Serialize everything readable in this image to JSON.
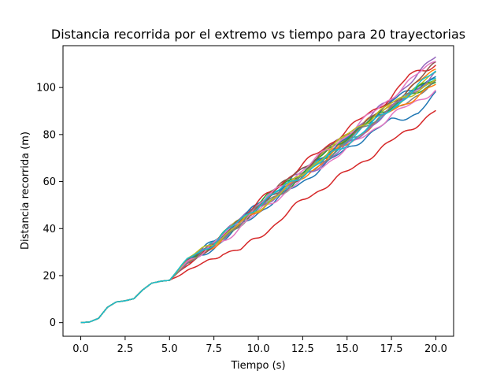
{
  "chart_data": {
    "type": "line",
    "title": "Distancia recorrida por el extremo vs tiempo para 20 trayectorias",
    "xlabel": "Tiempo (s)",
    "ylabel": "Distancia recorrida (m)",
    "xlim": [
      -1.0,
      21.0
    ],
    "ylim": [
      -5.8,
      117.8
    ],
    "xticks": [
      0.0,
      2.5,
      5.0,
      7.5,
      10.0,
      12.5,
      15.0,
      17.5,
      20.0
    ],
    "xtick_labels": [
      "0.0",
      "2.5",
      "5.0",
      "7.5",
      "10.0",
      "12.5",
      "15.0",
      "17.5",
      "20.0"
    ],
    "yticks": [
      0,
      20,
      40,
      60,
      80,
      100
    ],
    "ytick_labels": [
      "0",
      "20",
      "40",
      "60",
      "80",
      "100"
    ],
    "grid": false,
    "legend": "none",
    "common_start": {
      "x": [
        0,
        0.5,
        1.0,
        1.5,
        2.0,
        2.5,
        3.0,
        3.5,
        4.0,
        4.5,
        5.0
      ],
      "y": [
        0,
        0.3,
        1.8,
        6.5,
        8.8,
        9.3,
        10.2,
        14.0,
        16.8,
        17.6,
        18.0
      ]
    },
    "series": [
      {
        "color": "#1f77b4",
        "x": [
          5.0,
          6.0,
          7.5,
          10.0,
          12.5,
          15.0,
          17.5,
          19.0,
          20.0
        ],
        "y": [
          18.0,
          25.0,
          32.0,
          47.0,
          60.0,
          74.0,
          86.0,
          89.0,
          97.0
        ]
      },
      {
        "color": "#ff7f0e",
        "x": [
          5.0,
          6.0,
          7.5,
          10.0,
          12.5,
          15.0,
          17.5,
          20.0
        ],
        "y": [
          18.0,
          27.0,
          33.5,
          50.0,
          64.0,
          79.0,
          93.0,
          108.0
        ]
      },
      {
        "color": "#2ca02c",
        "x": [
          5.0,
          6.0,
          7.5,
          10.0,
          12.5,
          15.0,
          17.5,
          20.0
        ],
        "y": [
          18.0,
          26.0,
          33.0,
          48.0,
          62.0,
          78.0,
          91.0,
          103.0
        ]
      },
      {
        "color": "#d62728",
        "x": [
          5.0,
          6.0,
          7.0,
          8.0,
          9.0,
          10.0,
          12.5,
          15.0,
          17.5,
          20.0
        ],
        "y": [
          18.0,
          22.0,
          25.0,
          30.0,
          31.0,
          36.0,
          52.0,
          64.0,
          77.0,
          90.0
        ]
      },
      {
        "color": "#9467bd",
        "x": [
          5.0,
          6.0,
          7.5,
          10.0,
          12.5,
          15.0,
          17.5,
          20.0
        ],
        "y": [
          18.0,
          26.5,
          34.0,
          51.0,
          65.0,
          80.0,
          95.0,
          113.0
        ]
      },
      {
        "color": "#8c564b",
        "x": [
          5.0,
          6.0,
          7.5,
          10.0,
          12.5,
          15.0,
          17.5,
          20.0
        ],
        "y": [
          18.0,
          25.5,
          33.0,
          49.0,
          63.0,
          78.0,
          92.0,
          104.0
        ]
      },
      {
        "color": "#e377c2",
        "x": [
          5.0,
          6.0,
          7.5,
          10.0,
          12.5,
          15.0,
          17.5,
          20.0
        ],
        "y": [
          18.0,
          25.0,
          31.5,
          47.0,
          61.0,
          74.0,
          88.0,
          99.0
        ]
      },
      {
        "color": "#7f7f7f",
        "x": [
          5.0,
          6.0,
          7.5,
          10.0,
          12.5,
          15.0,
          17.5,
          20.0
        ],
        "y": [
          18.0,
          26.0,
          33.0,
          49.0,
          62.5,
          77.0,
          90.0,
          102.0
        ]
      },
      {
        "color": "#bcbd22",
        "x": [
          5.0,
          6.0,
          7.5,
          10.0,
          12.5,
          15.0,
          17.5,
          20.0
        ],
        "y": [
          18.0,
          26.5,
          34.0,
          50.0,
          64.0,
          80.0,
          92.0,
          106.0
        ]
      },
      {
        "color": "#17becf",
        "x": [
          5.0,
          6.0,
          7.5,
          10.0,
          12.5,
          15.0,
          17.5,
          20.0
        ],
        "y": [
          18.0,
          27.0,
          33.5,
          50.0,
          63.0,
          77.0,
          91.0,
          105.0
        ]
      },
      {
        "color": "#1f77b4",
        "x": [
          5.0,
          6.0,
          7.5,
          10.0,
          12.5,
          15.0,
          17.5,
          20.0
        ],
        "y": [
          18.0,
          26.0,
          34.5,
          50.0,
          65.0,
          78.0,
          94.0,
          105.0
        ]
      },
      {
        "color": "#ff7f0e",
        "x": [
          5.0,
          6.0,
          7.5,
          10.0,
          12.5,
          15.0,
          17.5,
          20.0
        ],
        "y": [
          18.0,
          25.0,
          33.0,
          48.0,
          62.0,
          76.0,
          90.0,
          101.0
        ]
      },
      {
        "color": "#2ca02c",
        "x": [
          5.0,
          6.0,
          7.5,
          10.0,
          12.5,
          15.0,
          17.5,
          20.0
        ],
        "y": [
          18.0,
          26.5,
          33.5,
          51.0,
          64.5,
          79.0,
          92.0,
          104.0
        ]
      },
      {
        "color": "#d62728",
        "x": [
          5.0,
          6.0,
          7.5,
          10.0,
          12.5,
          15.0,
          17.5,
          18.5,
          20.0
        ],
        "y": [
          18.0,
          25.0,
          33.0,
          51.0,
          67.0,
          82.0,
          96.0,
          105.0,
          110.0
        ]
      },
      {
        "color": "#9467bd",
        "x": [
          5.0,
          6.0,
          7.5,
          10.0,
          12.5,
          15.0,
          17.5,
          20.0
        ],
        "y": [
          18.0,
          26.0,
          34.0,
          49.0,
          62.0,
          75.0,
          91.0,
          106.0
        ]
      },
      {
        "color": "#8c564b",
        "x": [
          5.0,
          6.0,
          7.5,
          10.0,
          12.5,
          15.0,
          17.5,
          20.0
        ],
        "y": [
          18.0,
          26.0,
          33.0,
          50.0,
          66.0,
          80.0,
          93.0,
          110.0
        ]
      },
      {
        "color": "#e377c2",
        "x": [
          5.0,
          6.0,
          7.5,
          10.0,
          12.5,
          15.0,
          17.5,
          20.0
        ],
        "y": [
          18.0,
          26.0,
          33.5,
          50.0,
          65.0,
          80.0,
          96.0,
          112.0
        ]
      },
      {
        "color": "#7f7f7f",
        "x": [
          5.0,
          6.0,
          7.5,
          10.0,
          12.5,
          15.0,
          17.5,
          20.0
        ],
        "y": [
          18.0,
          25.5,
          33.0,
          49.0,
          62.0,
          77.0,
          92.0,
          104.0
        ]
      },
      {
        "color": "#bcbd22",
        "x": [
          5.0,
          6.0,
          7.5,
          10.0,
          12.5,
          15.0,
          17.5,
          20.0
        ],
        "y": [
          18.0,
          27.0,
          34.0,
          48.0,
          63.0,
          80.0,
          93.0,
          103.0
        ]
      },
      {
        "color": "#17becf",
        "x": [
          5.0,
          6.0,
          7.5,
          10.0,
          12.5,
          15.0,
          17.5,
          20.0
        ],
        "y": [
          18.0,
          27.0,
          34.0,
          50.0,
          63.0,
          76.0,
          91.0,
          107.0
        ]
      }
    ]
  }
}
